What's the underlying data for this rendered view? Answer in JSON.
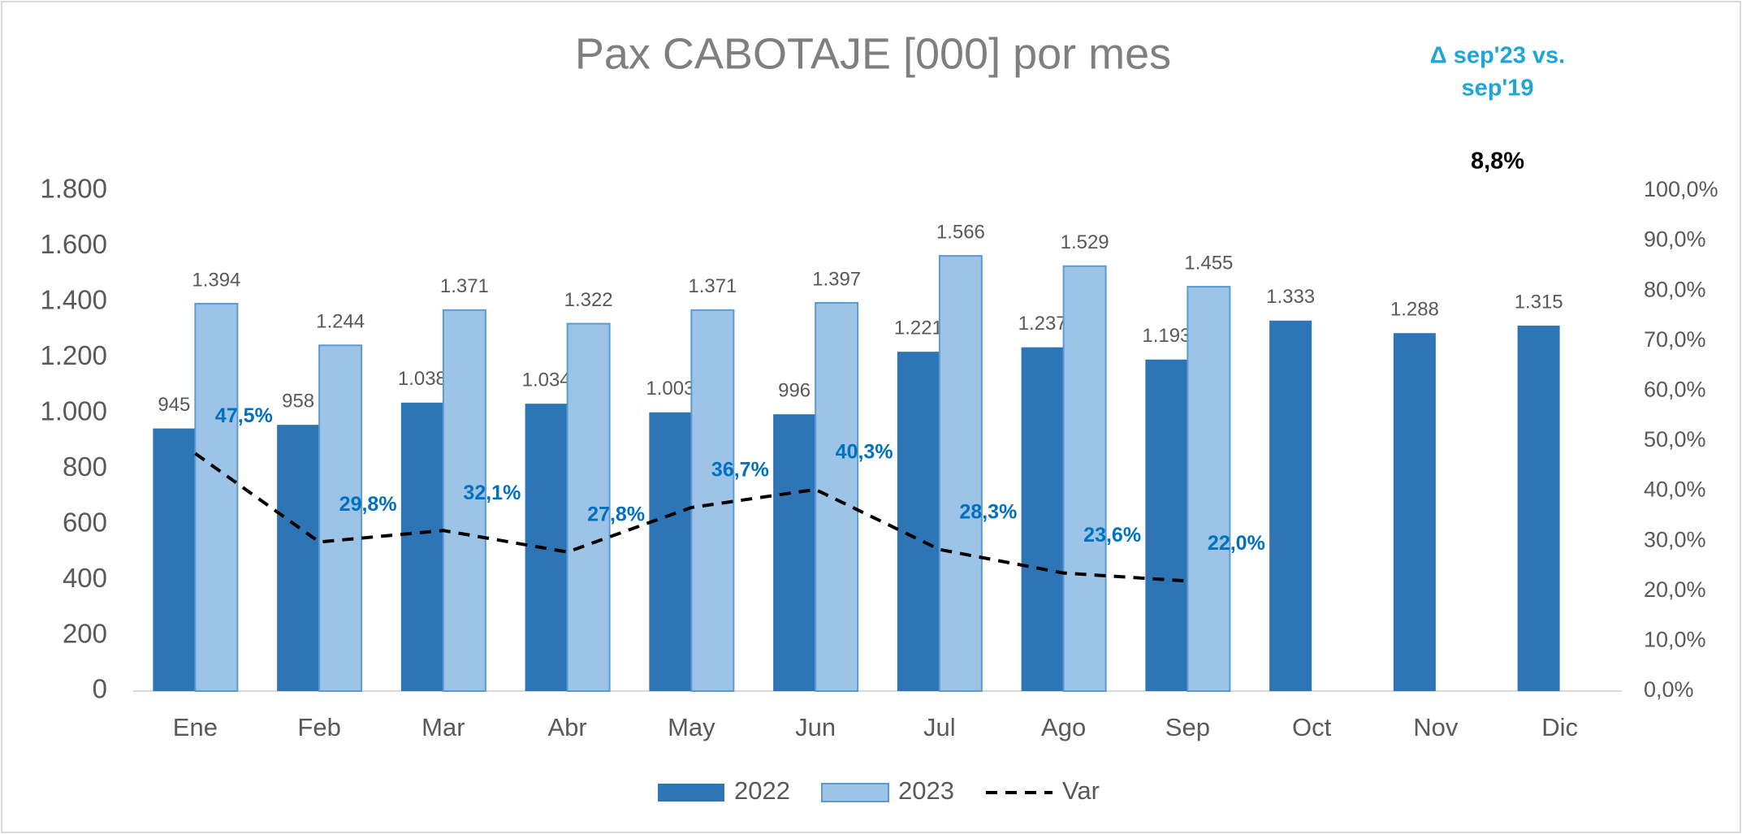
{
  "chart_data": {
    "type": "bar",
    "title": "Pax CABOTAJE [000] por mes",
    "categories": [
      "Ene",
      "Feb",
      "Mar",
      "Abr",
      "May",
      "Jun",
      "Jul",
      "Ago",
      "Sep",
      "Oct",
      "Nov",
      "Dic"
    ],
    "series": [
      {
        "name": "2022",
        "color": "#2e75b6",
        "type": "bar",
        "values": [
          945,
          958,
          1038,
          1034,
          1003,
          996,
          1221,
          1237,
          1193,
          1333,
          1288,
          1315
        ],
        "value_labels": [
          "945",
          "958",
          "1.038",
          "1.034",
          "1.003",
          "996",
          "1.221",
          "1.237",
          "1.193",
          "1.333",
          "1.288",
          "1.315"
        ]
      },
      {
        "name": "2023",
        "color": "#9dc3e6",
        "type": "bar",
        "values": [
          1394,
          1244,
          1371,
          1322,
          1371,
          1397,
          1566,
          1529,
          1455,
          null,
          null,
          null
        ],
        "value_labels": [
          "1.394",
          "1.244",
          "1.371",
          "1.322",
          "1.371",
          "1.397",
          "1.566",
          "1.529",
          "1.455",
          null,
          null,
          null
        ]
      },
      {
        "name": "Var",
        "color": "#000000",
        "type": "line",
        "axis": "y2",
        "values": [
          47.5,
          29.8,
          32.1,
          27.8,
          36.7,
          40.3,
          28.3,
          23.6,
          22.0,
          null,
          null,
          null
        ],
        "value_labels": [
          "47,5%",
          "29,8%",
          "32,1%",
          "27,8%",
          "36,7%",
          "40,3%",
          "28,3%",
          "23,6%",
          "22,0%",
          null,
          null,
          null
        ]
      }
    ],
    "ylim": [
      0,
      1800
    ],
    "yticks": [
      0,
      200,
      400,
      600,
      800,
      {
        "value": 1000,
        "label": "1.000"
      },
      {
        "value": 1200,
        "label": "1.200"
      },
      {
        "value": 1400,
        "label": "1.400"
      },
      {
        "value": 1600,
        "label": "1.600"
      },
      {
        "value": 1800,
        "label": "1.800"
      }
    ],
    "y2lim": [
      0,
      100
    ],
    "y2ticks": [
      {
        "value": 0,
        "label": "0,0%"
      },
      {
        "value": 10,
        "label": "10,0%"
      },
      {
        "value": 20,
        "label": "20,0%"
      },
      {
        "value": 30,
        "label": "30,0%"
      },
      {
        "value": 40,
        "label": "40,0%"
      },
      {
        "value": 50,
        "label": "50,0%"
      },
      {
        "value": 60,
        "label": "60,0%"
      },
      {
        "value": 70,
        "label": "70,0%"
      },
      {
        "value": 80,
        "label": "80,0%"
      },
      {
        "value": 90,
        "label": "90,0%"
      },
      {
        "value": 100,
        "label": "100,0%"
      }
    ],
    "grid": false,
    "legend": "bottom",
    "annotations": [
      {
        "lines": [
          "Δ sep'23 vs.",
          "sep'19"
        ]
      },
      {
        "text": "8,8%"
      }
    ]
  }
}
